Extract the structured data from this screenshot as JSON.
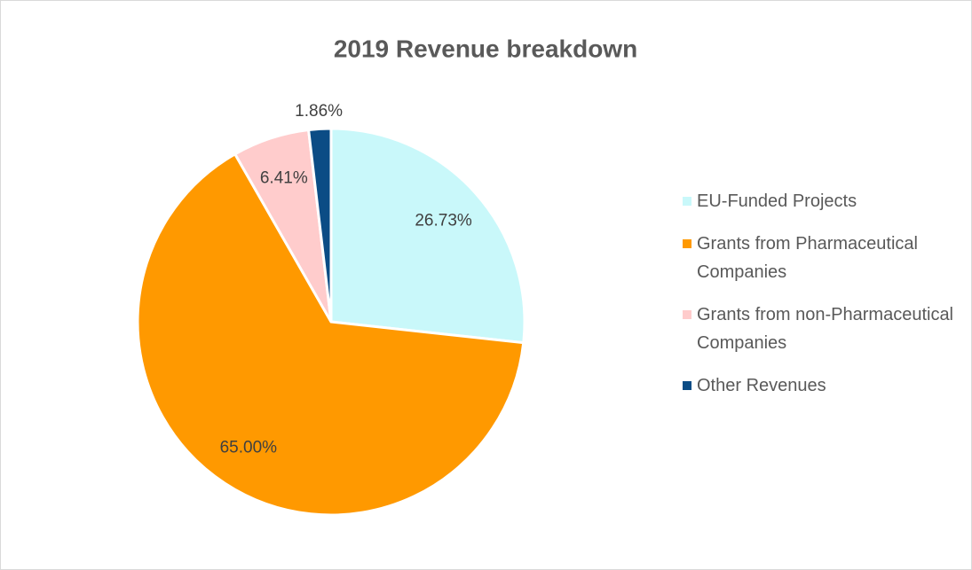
{
  "chart_data": {
    "type": "pie",
    "title": "2019 Revenue breakdown",
    "categories": [
      "EU-Funded Projects",
      "Grants from Pharmaceutical Companies",
      "Grants from non-Pharmaceutical Companies",
      "Other Revenues"
    ],
    "values": [
      26.73,
      65.0,
      6.41,
      1.86
    ],
    "value_labels": [
      "26.73%",
      "65.00%",
      "6.41%",
      "1.86%"
    ],
    "colors": [
      "#c9f8fa",
      "#ff9900",
      "#ffcccc",
      "#0b4c85"
    ],
    "legend": "right"
  }
}
